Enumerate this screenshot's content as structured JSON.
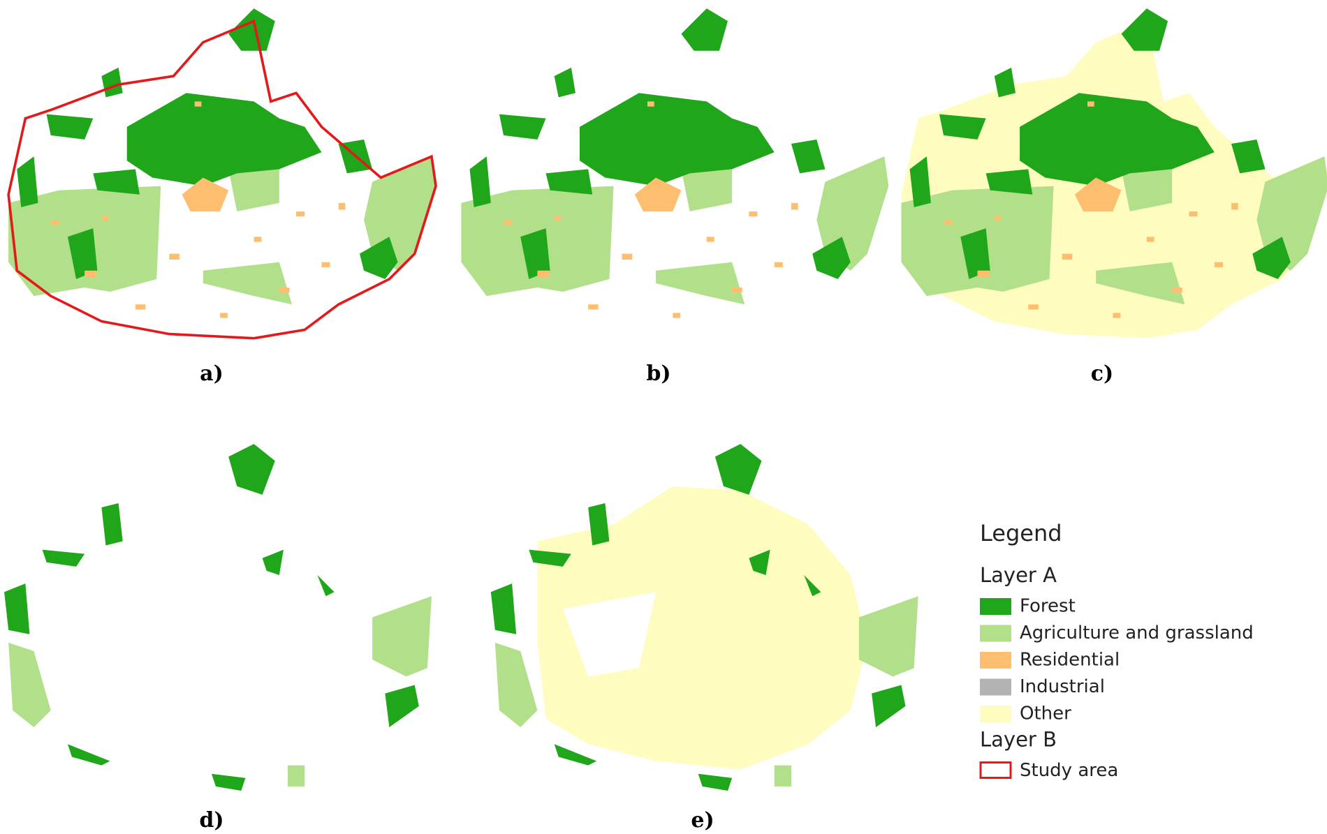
{
  "panels": [
    {
      "label": "a)"
    },
    {
      "label": "b)"
    },
    {
      "label": "c)"
    },
    {
      "label": "d)"
    },
    {
      "label": "e)"
    }
  ],
  "legend": {
    "title": "Legend",
    "layers": [
      {
        "name": "Layer A",
        "items": [
          {
            "label": "Forest",
            "color": "#1fa61a"
          },
          {
            "label": "Agriculture and grassland",
            "color": "#b2df8a"
          },
          {
            "label": "Residential",
            "color": "#fdbf6f"
          },
          {
            "label": "Industrial",
            "color": "#b3b3b3"
          },
          {
            "label": "Other",
            "color": "#fffcc0"
          }
        ]
      },
      {
        "name": "Layer B",
        "items": [
          {
            "label": "Study area",
            "color": "#e31a1c"
          }
        ]
      }
    ]
  }
}
